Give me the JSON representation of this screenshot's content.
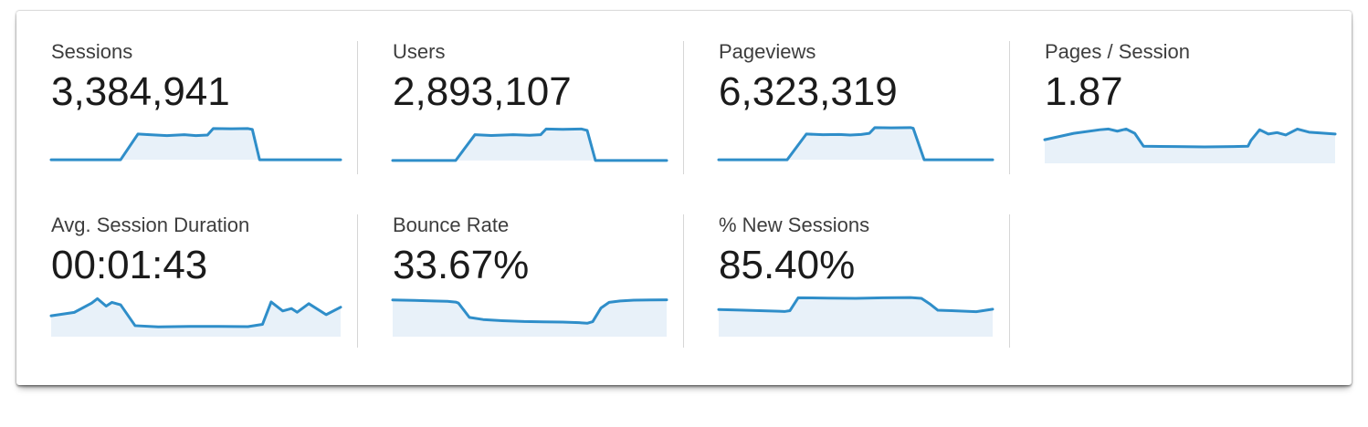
{
  "cards": [
    {
      "label": "Sessions",
      "value": "3,384,941"
    },
    {
      "label": "Users",
      "value": "2,893,107"
    },
    {
      "label": "Pageviews",
      "value": "6,323,319"
    },
    {
      "label": "Pages / Session",
      "value": "1.87"
    },
    {
      "label": "Avg. Session Duration",
      "value": "00:01:43"
    },
    {
      "label": "Bounce Rate",
      "value": "33.67%"
    },
    {
      "label": "% New Sessions",
      "value": "85.40%"
    }
  ],
  "colors": {
    "sparkline_line": "#2f8ec9",
    "sparkline_fill": "#e8f1f9",
    "divider": "#d6d6d6",
    "label_text": "#3d3d3d",
    "value_text": "#1b1b1b",
    "panel_background": "#ffffff"
  },
  "chart_data": [
    {
      "type": "area",
      "metric": "Sessions",
      "x_axis": "time (unlabeled sparkline)",
      "y_axis": "unlabeled; y is drawing coordinate in 100x30 viewBox, smaller y = higher value",
      "fill_to": "baseline",
      "points": [
        [
          0,
          27.5
        ],
        [
          24,
          27.5
        ],
        [
          30,
          9.5
        ],
        [
          34,
          10
        ],
        [
          40,
          10.6
        ],
        [
          46,
          10
        ],
        [
          50,
          10.6
        ],
        [
          54,
          10.2
        ],
        [
          56,
          5.7
        ],
        [
          62,
          5.8
        ],
        [
          68,
          5.7
        ],
        [
          69.5,
          6.3
        ],
        [
          72,
          27.5
        ],
        [
          100,
          27.5
        ]
      ]
    },
    {
      "type": "area",
      "metric": "Users",
      "x_axis": "time (unlabeled sparkline)",
      "y_axis": "unlabeled; smaller y = higher value",
      "fill_to": "baseline",
      "points": [
        [
          0,
          28
        ],
        [
          23,
          28
        ],
        [
          30,
          10
        ],
        [
          36,
          10.5
        ],
        [
          44,
          10
        ],
        [
          50,
          10.4
        ],
        [
          54,
          10
        ],
        [
          56,
          6
        ],
        [
          62,
          6.2
        ],
        [
          69,
          6
        ],
        [
          71,
          7
        ],
        [
          74,
          28
        ],
        [
          100,
          28
        ]
      ]
    },
    {
      "type": "area",
      "metric": "Pageviews",
      "x_axis": "time (unlabeled sparkline)",
      "y_axis": "unlabeled; smaller y = higher value",
      "fill_to": "baseline",
      "points": [
        [
          0,
          27.5
        ],
        [
          25,
          27.5
        ],
        [
          32,
          9.5
        ],
        [
          38,
          10
        ],
        [
          44,
          9.8
        ],
        [
          48,
          10.2
        ],
        [
          52,
          9.8
        ],
        [
          55,
          9
        ],
        [
          57,
          5
        ],
        [
          63,
          5.2
        ],
        [
          70,
          5
        ],
        [
          71,
          5.5
        ],
        [
          75,
          27.5
        ],
        [
          100,
          27.5
        ]
      ]
    },
    {
      "type": "area",
      "metric": "Pages / Session",
      "x_axis": "time (unlabeled sparkline)",
      "y_axis": "unlabeled; smaller y = higher value",
      "fill_to": "bottom",
      "points": [
        [
          0,
          13.5
        ],
        [
          10,
          9
        ],
        [
          19,
          6.5
        ],
        [
          22,
          6
        ],
        [
          25,
          7.5
        ],
        [
          28,
          6
        ],
        [
          31,
          9
        ],
        [
          34,
          18
        ],
        [
          45,
          18.3
        ],
        [
          55,
          18.5
        ],
        [
          65,
          18.3
        ],
        [
          70,
          18
        ],
        [
          71,
          14
        ],
        [
          74,
          6.5
        ],
        [
          77,
          9.5
        ],
        [
          80,
          8.5
        ],
        [
          83,
          10.2
        ],
        [
          87,
          6
        ],
        [
          91,
          8.2
        ],
        [
          95,
          8.8
        ],
        [
          100,
          9.5
        ]
      ]
    },
    {
      "type": "area",
      "metric": "Avg. Session Duration",
      "x_axis": "time (unlabeled sparkline)",
      "y_axis": "unlabeled; smaller y = higher value",
      "fill_to": "bottom",
      "points": [
        [
          0,
          15.4
        ],
        [
          8,
          13
        ],
        [
          14,
          6.5
        ],
        [
          16,
          3.4
        ],
        [
          19,
          8.6
        ],
        [
          21,
          6
        ],
        [
          24,
          7.7
        ],
        [
          29,
          22.3
        ],
        [
          37,
          23.1
        ],
        [
          48,
          22.8
        ],
        [
          58,
          22.8
        ],
        [
          68,
          23
        ],
        [
          73,
          21.4
        ],
        [
          76,
          5.7
        ],
        [
          80,
          12
        ],
        [
          83,
          10.3
        ],
        [
          85,
          12.9
        ],
        [
          89,
          6.9
        ],
        [
          95,
          14.6
        ],
        [
          100,
          9.4
        ]
      ]
    },
    {
      "type": "area",
      "metric": "Bounce Rate",
      "x_axis": "time (unlabeled sparkline)",
      "y_axis": "unlabeled; smaller y = higher value",
      "fill_to": "bottom",
      "points": [
        [
          0,
          4.3
        ],
        [
          8,
          4.6
        ],
        [
          15,
          5
        ],
        [
          20,
          5.3
        ],
        [
          23,
          5.8
        ],
        [
          24,
          6.5
        ],
        [
          28,
          16.5
        ],
        [
          33,
          18
        ],
        [
          40,
          18.8
        ],
        [
          48,
          19.4
        ],
        [
          55,
          19.6
        ],
        [
          62,
          19.8
        ],
        [
          68,
          20.2
        ],
        [
          71,
          20.6
        ],
        [
          73,
          19.5
        ],
        [
          76,
          10
        ],
        [
          79,
          6
        ],
        [
          83,
          5
        ],
        [
          88,
          4.5
        ],
        [
          94,
          4.3
        ],
        [
          100,
          4.2
        ]
      ]
    },
    {
      "type": "area",
      "metric": "% New Sessions",
      "x_axis": "time (unlabeled sparkline)",
      "y_axis": "unlabeled; smaller y = higher value",
      "fill_to": "bottom",
      "points": [
        [
          0,
          11
        ],
        [
          8,
          11.4
        ],
        [
          15,
          11.8
        ],
        [
          22,
          12.2
        ],
        [
          24,
          12.4
        ],
        [
          26,
          11.8
        ],
        [
          29,
          2.8
        ],
        [
          40,
          3
        ],
        [
          50,
          3.2
        ],
        [
          60,
          2.8
        ],
        [
          70,
          2.6
        ],
        [
          74,
          3.2
        ],
        [
          77,
          7
        ],
        [
          80,
          11.5
        ],
        [
          85,
          11.8
        ],
        [
          90,
          12.2
        ],
        [
          94,
          12.5
        ],
        [
          100,
          10.8
        ]
      ]
    }
  ]
}
